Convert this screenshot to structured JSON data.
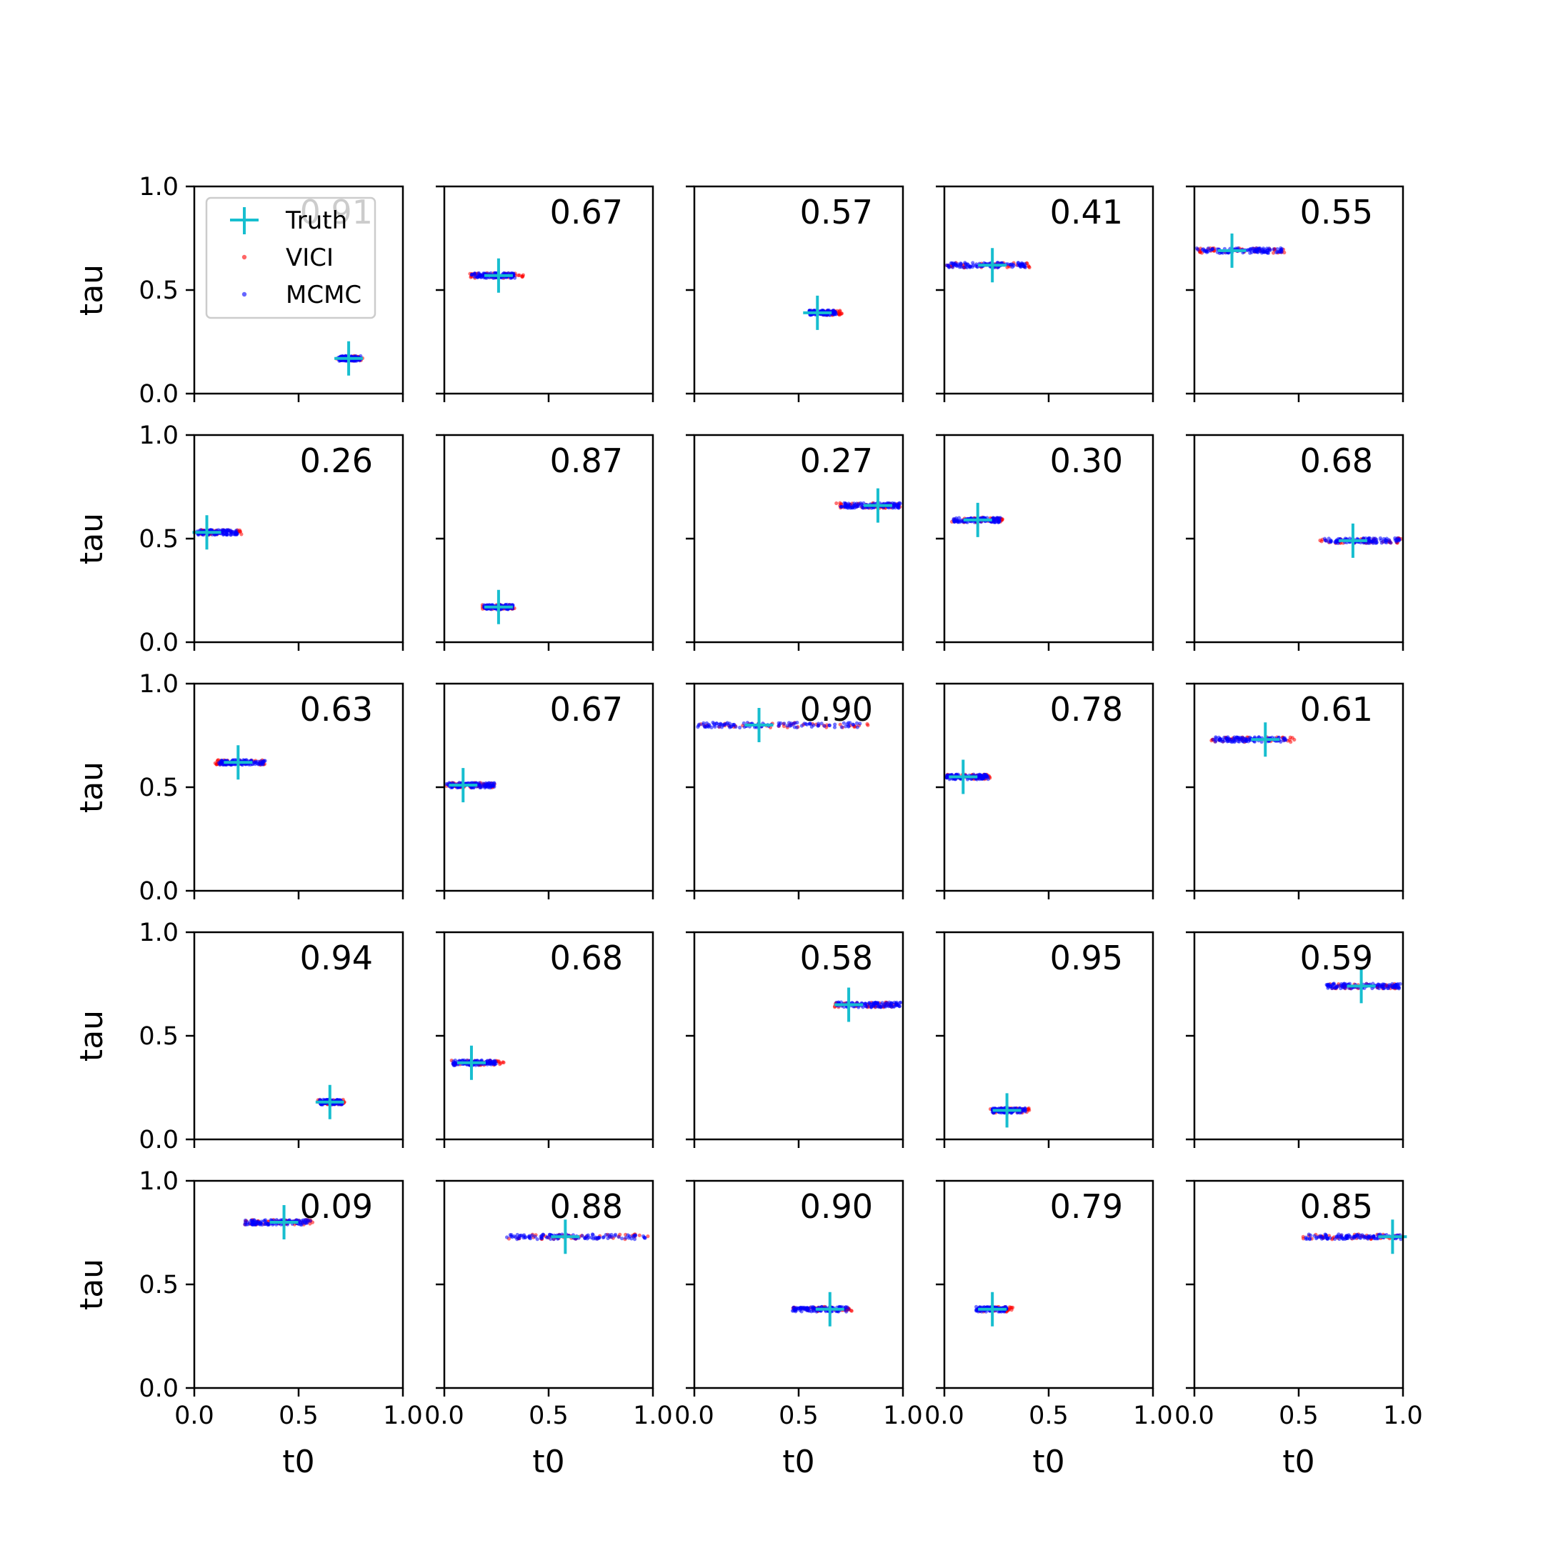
{
  "chart_data": {
    "type": "scatter",
    "layout": "5x5 grid of subplots",
    "xlabel": "t0",
    "ylabel": "tau",
    "xlim": [
      0,
      1
    ],
    "ylim": [
      0,
      1
    ],
    "xticks": [
      "0.0",
      "0.5",
      "1.0"
    ],
    "yticks": [
      "0.0",
      "0.5",
      "1.0"
    ],
    "grid": false,
    "legend": {
      "placement": "upper-left of first subplot",
      "entries": [
        {
          "label": "Truth",
          "marker": "plus",
          "color": "#17becf"
        },
        {
          "label": "VICI",
          "marker": "dot",
          "color": "#ff0000"
        },
        {
          "label": "MCMC",
          "marker": "dot",
          "color": "#0000ff"
        }
      ]
    },
    "colors": {
      "truth": "#17becf",
      "vici": "#ff0000",
      "mcmc": "#0000ff"
    },
    "panels": [
      {
        "score": "0.91",
        "truth": [
          0.74,
          0.17
        ],
        "vici": {
          "x": [
            0.68,
            0.81
          ],
          "y": 0.17
        },
        "mcmc": {
          "x": [
            0.69,
            0.8
          ],
          "y": 0.17
        }
      },
      {
        "score": "0.67",
        "truth": [
          0.26,
          0.57
        ],
        "vici": {
          "x": [
            0.12,
            0.38
          ],
          "y": 0.57
        },
        "mcmc": {
          "x": [
            0.13,
            0.34
          ],
          "y": 0.57
        }
      },
      {
        "score": "0.57",
        "truth": [
          0.59,
          0.39
        ],
        "vici": {
          "x": [
            0.55,
            0.71
          ],
          "y": 0.39
        },
        "mcmc": {
          "x": [
            0.55,
            0.68
          ],
          "y": 0.39
        }
      },
      {
        "score": "0.41",
        "truth": [
          0.23,
          0.62
        ],
        "vici": {
          "x": [
            0.01,
            0.42
          ],
          "y": 0.62
        },
        "mcmc": {
          "x": [
            0.01,
            0.4
          ],
          "y": 0.62
        }
      },
      {
        "score": "0.55",
        "truth": [
          0.18,
          0.69
        ],
        "vici": {
          "x": [
            0.01,
            0.46
          ],
          "y": 0.69
        },
        "mcmc": {
          "x": [
            0.01,
            0.42
          ],
          "y": 0.69
        }
      },
      {
        "score": "0.26",
        "truth": [
          0.06,
          0.53
        ],
        "vici": {
          "x": [
            0.01,
            0.23
          ],
          "y": 0.53
        },
        "mcmc": {
          "x": [
            0.01,
            0.21
          ],
          "y": 0.53
        }
      },
      {
        "score": "0.87",
        "truth": [
          0.26,
          0.17
        ],
        "vici": {
          "x": [
            0.18,
            0.34
          ],
          "y": 0.17
        },
        "mcmc": {
          "x": [
            0.19,
            0.33
          ],
          "y": 0.17
        }
      },
      {
        "score": "0.27",
        "truth": [
          0.88,
          0.66
        ],
        "vici": {
          "x": [
            0.68,
            0.99
          ],
          "y": 0.66
        },
        "mcmc": {
          "x": [
            0.7,
            0.99
          ],
          "y": 0.66
        }
      },
      {
        "score": "0.30",
        "truth": [
          0.16,
          0.59
        ],
        "vici": {
          "x": [
            0.03,
            0.28
          ],
          "y": 0.59
        },
        "mcmc": {
          "x": [
            0.04,
            0.27
          ],
          "y": 0.59
        }
      },
      {
        "score": "0.68",
        "truth": [
          0.76,
          0.49
        ],
        "vici": {
          "x": [
            0.6,
            0.99
          ],
          "y": 0.49
        },
        "mcmc": {
          "x": [
            0.62,
            0.99
          ],
          "y": 0.49
        }
      },
      {
        "score": "0.63",
        "truth": [
          0.21,
          0.62
        ],
        "vici": {
          "x": [
            0.1,
            0.35
          ],
          "y": 0.62
        },
        "mcmc": {
          "x": [
            0.11,
            0.34
          ],
          "y": 0.62
        }
      },
      {
        "score": "0.67",
        "truth": [
          0.09,
          0.51
        ],
        "vici": {
          "x": [
            0.01,
            0.25
          ],
          "y": 0.51
        },
        "mcmc": {
          "x": [
            0.01,
            0.24
          ],
          "y": 0.51
        }
      },
      {
        "score": "0.90",
        "truth": [
          0.31,
          0.8
        ],
        "vici": {
          "x": [
            0.01,
            0.85
          ],
          "y": 0.8
        },
        "mcmc": {
          "x": [
            0.01,
            0.8
          ],
          "y": 0.8
        }
      },
      {
        "score": "0.78",
        "truth": [
          0.09,
          0.55
        ],
        "vici": {
          "x": [
            0.01,
            0.22
          ],
          "y": 0.55
        },
        "mcmc": {
          "x": [
            0.01,
            0.21
          ],
          "y": 0.55
        }
      },
      {
        "score": "0.61",
        "truth": [
          0.34,
          0.73
        ],
        "vici": {
          "x": [
            0.08,
            0.48
          ],
          "y": 0.73
        },
        "mcmc": {
          "x": [
            0.09,
            0.45
          ],
          "y": 0.73
        }
      },
      {
        "score": "0.94",
        "truth": [
          0.65,
          0.18
        ],
        "vici": {
          "x": [
            0.59,
            0.72
          ],
          "y": 0.18
        },
        "mcmc": {
          "x": [
            0.6,
            0.71
          ],
          "y": 0.18
        }
      },
      {
        "score": "0.68",
        "truth": [
          0.13,
          0.37
        ],
        "vici": {
          "x": [
            0.03,
            0.29
          ],
          "y": 0.37
        },
        "mcmc": {
          "x": [
            0.04,
            0.25
          ],
          "y": 0.37
        }
      },
      {
        "score": "0.58",
        "truth": [
          0.74,
          0.65
        ],
        "vici": {
          "x": [
            0.67,
            0.99
          ],
          "y": 0.65
        },
        "mcmc": {
          "x": [
            0.68,
            0.99
          ],
          "y": 0.65
        }
      },
      {
        "score": "0.95",
        "truth": [
          0.3,
          0.14
        ],
        "vici": {
          "x": [
            0.22,
            0.41
          ],
          "y": 0.14
        },
        "mcmc": {
          "x": [
            0.23,
            0.39
          ],
          "y": 0.14
        }
      },
      {
        "score": "0.59",
        "truth": [
          0.8,
          0.74
        ],
        "vici": {
          "x": [
            0.62,
            0.99
          ],
          "y": 0.74
        },
        "mcmc": {
          "x": [
            0.63,
            0.99
          ],
          "y": 0.74
        }
      },
      {
        "score": "0.09",
        "truth": [
          0.43,
          0.8
        ],
        "vici": {
          "x": [
            0.24,
            0.57
          ],
          "y": 0.8
        },
        "mcmc": {
          "x": [
            0.24,
            0.56
          ],
          "y": 0.8
        }
      },
      {
        "score": "0.88",
        "truth": [
          0.58,
          0.73
        ],
        "vici": {
          "x": [
            0.29,
            0.99
          ],
          "y": 0.73
        },
        "mcmc": {
          "x": [
            0.3,
            0.97
          ],
          "y": 0.73
        }
      },
      {
        "score": "0.90",
        "truth": [
          0.65,
          0.38
        ],
        "vici": {
          "x": [
            0.47,
            0.77
          ],
          "y": 0.38
        },
        "mcmc": {
          "x": [
            0.47,
            0.74
          ],
          "y": 0.38
        }
      },
      {
        "score": "0.79",
        "truth": [
          0.23,
          0.38
        ],
        "vici": {
          "x": [
            0.15,
            0.33
          ],
          "y": 0.38
        },
        "mcmc": {
          "x": [
            0.15,
            0.3
          ],
          "y": 0.38
        }
      },
      {
        "score": "0.85",
        "truth": [
          0.95,
          0.73
        ],
        "vici": {
          "x": [
            0.52,
            0.99
          ],
          "y": 0.73
        },
        "mcmc": {
          "x": [
            0.53,
            0.99
          ],
          "y": 0.73
        }
      }
    ]
  }
}
